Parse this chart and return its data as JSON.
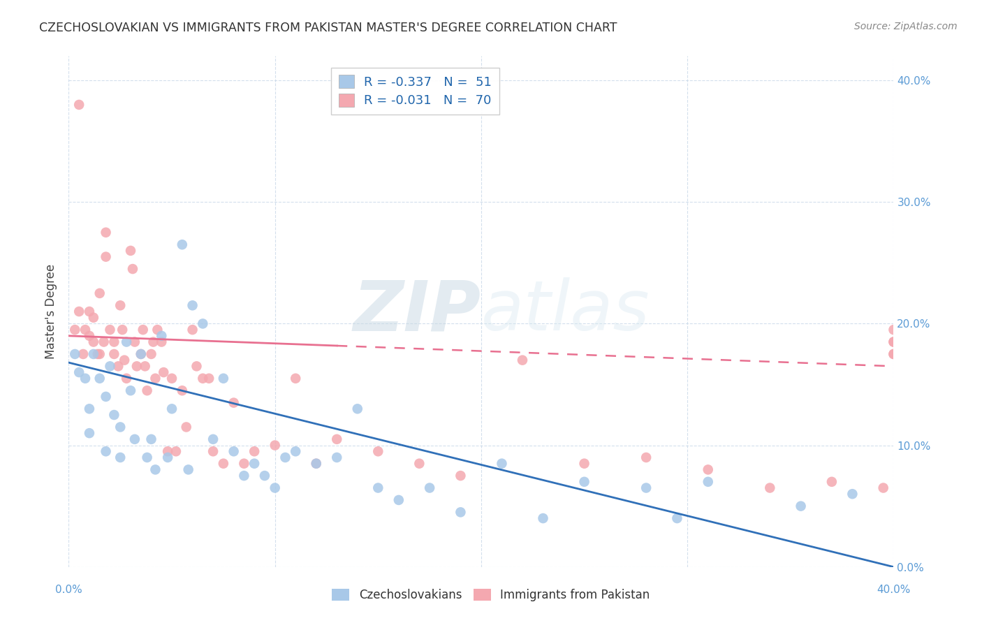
{
  "title": "CZECHOSLOVAKIAN VS IMMIGRANTS FROM PAKISTAN MASTER'S DEGREE CORRELATION CHART",
  "source": "Source: ZipAtlas.com",
  "xlim": [
    0.0,
    0.4
  ],
  "ylim": [
    0.0,
    0.42
  ],
  "legend_r1": "R = -0.337",
  "legend_n1": "N =  51",
  "legend_r2": "R = -0.031",
  "legend_n2": "N =  70",
  "blue_color": "#a8c8e8",
  "pink_color": "#f4a8b0",
  "blue_line_color": "#3070b8",
  "pink_line_color": "#d86080",
  "pink_line_solid_color": "#e87090",
  "watermark_zip": "ZIP",
  "watermark_atlas": "atlas",
  "ylabel": "Master's Degree",
  "blue_scatter_x": [
    0.003,
    0.005,
    0.008,
    0.01,
    0.01,
    0.012,
    0.015,
    0.018,
    0.018,
    0.02,
    0.022,
    0.025,
    0.025,
    0.028,
    0.03,
    0.032,
    0.035,
    0.038,
    0.04,
    0.042,
    0.045,
    0.048,
    0.05,
    0.055,
    0.058,
    0.06,
    0.065,
    0.07,
    0.075,
    0.08,
    0.085,
    0.09,
    0.095,
    0.1,
    0.105,
    0.11,
    0.12,
    0.13,
    0.14,
    0.15,
    0.16,
    0.175,
    0.19,
    0.21,
    0.23,
    0.25,
    0.28,
    0.295,
    0.31,
    0.355,
    0.38
  ],
  "blue_scatter_y": [
    0.175,
    0.16,
    0.155,
    0.13,
    0.11,
    0.175,
    0.155,
    0.14,
    0.095,
    0.165,
    0.125,
    0.115,
    0.09,
    0.185,
    0.145,
    0.105,
    0.175,
    0.09,
    0.105,
    0.08,
    0.19,
    0.09,
    0.13,
    0.265,
    0.08,
    0.215,
    0.2,
    0.105,
    0.155,
    0.095,
    0.075,
    0.085,
    0.075,
    0.065,
    0.09,
    0.095,
    0.085,
    0.09,
    0.13,
    0.065,
    0.055,
    0.065,
    0.045,
    0.085,
    0.04,
    0.07,
    0.065,
    0.04,
    0.07,
    0.05,
    0.06
  ],
  "pink_scatter_x": [
    0.003,
    0.005,
    0.005,
    0.007,
    0.008,
    0.01,
    0.01,
    0.012,
    0.012,
    0.014,
    0.015,
    0.015,
    0.017,
    0.018,
    0.018,
    0.02,
    0.022,
    0.022,
    0.024,
    0.025,
    0.026,
    0.027,
    0.028,
    0.03,
    0.031,
    0.032,
    0.033,
    0.035,
    0.036,
    0.037,
    0.038,
    0.04,
    0.041,
    0.042,
    0.043,
    0.045,
    0.046,
    0.048,
    0.05,
    0.052,
    0.055,
    0.057,
    0.06,
    0.062,
    0.065,
    0.068,
    0.07,
    0.075,
    0.08,
    0.085,
    0.09,
    0.1,
    0.11,
    0.12,
    0.13,
    0.15,
    0.17,
    0.19,
    0.22,
    0.25,
    0.28,
    0.31,
    0.34,
    0.37,
    0.395,
    0.4,
    0.4,
    0.4,
    0.4,
    0.4
  ],
  "pink_scatter_y": [
    0.195,
    0.38,
    0.21,
    0.175,
    0.195,
    0.21,
    0.19,
    0.205,
    0.185,
    0.175,
    0.225,
    0.175,
    0.185,
    0.275,
    0.255,
    0.195,
    0.185,
    0.175,
    0.165,
    0.215,
    0.195,
    0.17,
    0.155,
    0.26,
    0.245,
    0.185,
    0.165,
    0.175,
    0.195,
    0.165,
    0.145,
    0.175,
    0.185,
    0.155,
    0.195,
    0.185,
    0.16,
    0.095,
    0.155,
    0.095,
    0.145,
    0.115,
    0.195,
    0.165,
    0.155,
    0.155,
    0.095,
    0.085,
    0.135,
    0.085,
    0.095,
    0.1,
    0.155,
    0.085,
    0.105,
    0.095,
    0.085,
    0.075,
    0.17,
    0.085,
    0.09,
    0.08,
    0.065,
    0.07,
    0.065,
    0.195,
    0.185,
    0.175,
    0.185,
    0.175
  ],
  "blue_trend": [
    -0.337,
    51
  ],
  "pink_trend": [
    -0.031,
    70
  ]
}
